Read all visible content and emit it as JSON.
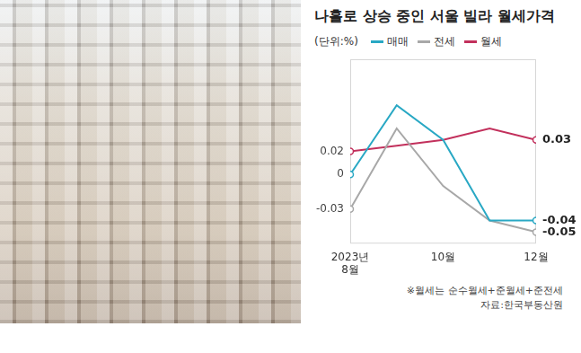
{
  "chart_data": {
    "type": "line",
    "title": "나홀로 상승 중인 서울 빌라 월세가격",
    "unit": "(단위:%)",
    "categories": [
      "2023년 8월",
      null,
      "10월",
      null,
      "12월"
    ],
    "series": [
      {
        "name": "매매",
        "color": "#29a8c4",
        "marker": "circle",
        "values": [
          0,
          0.06,
          0.03,
          -0.04,
          -0.04
        ],
        "value_labels": [
          "0",
          null,
          null,
          null,
          "-0.04"
        ]
      },
      {
        "name": "전세",
        "color": "#a8a8a8",
        "marker": "circle",
        "values": [
          -0.03,
          0.04,
          -0.01,
          -0.04,
          -0.05
        ],
        "value_labels": [
          "-0.03",
          null,
          null,
          null,
          "-0.05"
        ]
      },
      {
        "name": "월세",
        "color": "#c2305c",
        "marker": "circle",
        "values": [
          0.02,
          0.025,
          0.03,
          0.04,
          0.03
        ],
        "value_labels": [
          "0.02",
          null,
          null,
          null,
          "0.03"
        ]
      }
    ],
    "ylim": [
      -0.06,
      0.1
    ],
    "grid": false,
    "legend": "top",
    "tick_labels": "x",
    "notes": [
      "※월세는 순수월세+준월세+준전세",
      "자료:한국부동산원"
    ]
  }
}
